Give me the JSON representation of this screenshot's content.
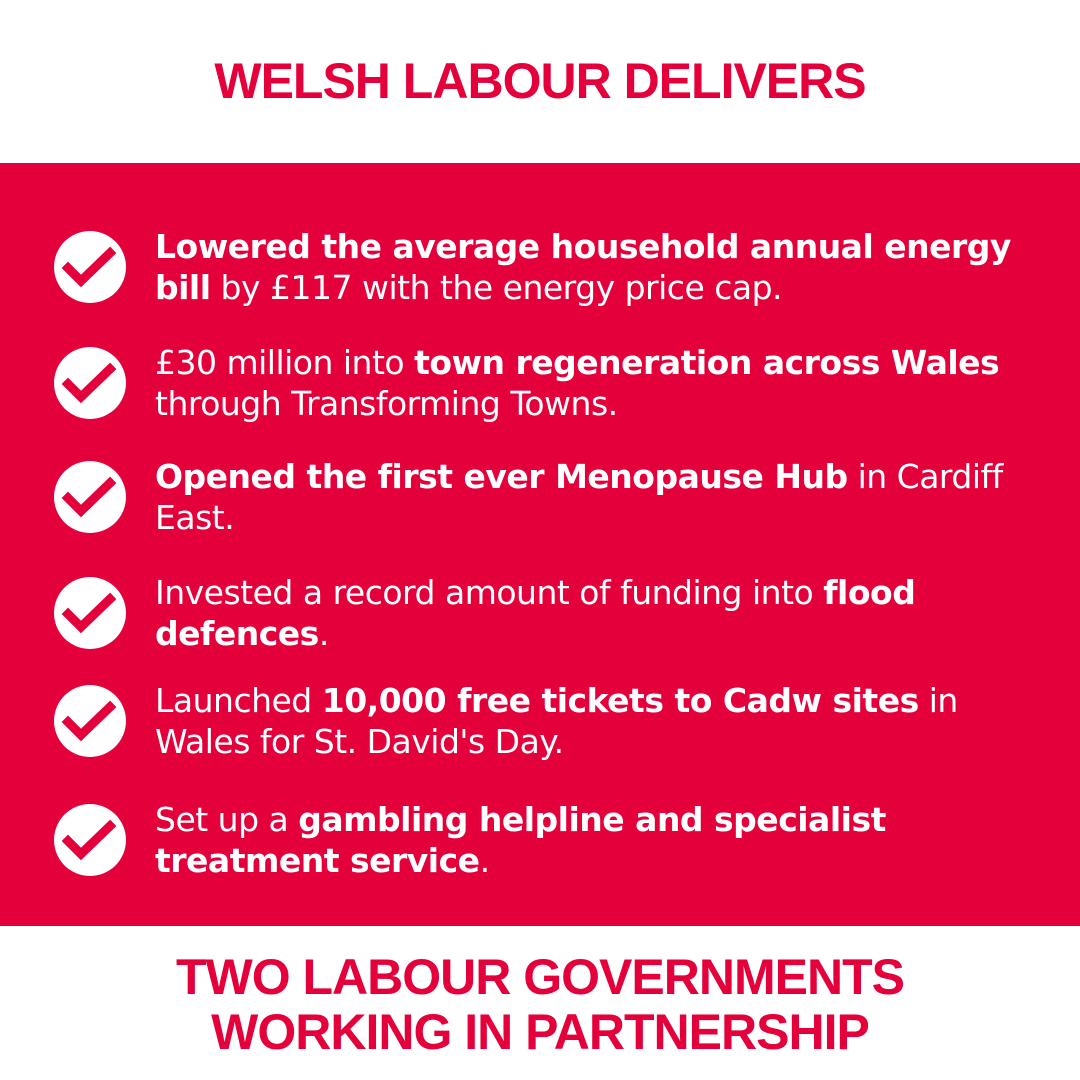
{
  "header": {
    "title": "WELSH LABOUR DELIVERS"
  },
  "colors": {
    "accent": "#E4003B",
    "background": "#FFFFFF",
    "text_on_accent": "#FFFFFF"
  },
  "items": [
    {
      "icon": "check-circle-icon",
      "segments": [
        {
          "text": "Lowered the average household annual energy bill",
          "bold": true
        },
        {
          "text": " by £117 with the energy price cap.",
          "bold": false
        }
      ]
    },
    {
      "icon": "check-circle-icon",
      "segments": [
        {
          "text": "£30 million into ",
          "bold": false
        },
        {
          "text": "town regeneration across Wales",
          "bold": true
        },
        {
          "text": " through Transforming Towns.",
          "bold": false
        }
      ]
    },
    {
      "icon": "check-circle-icon",
      "segments": [
        {
          "text": "Opened the first ever Menopause Hub",
          "bold": true
        },
        {
          "text": " in Cardiff East.",
          "bold": false
        }
      ]
    },
    {
      "icon": "check-circle-icon",
      "segments": [
        {
          "text": "Invested a record amount of funding into ",
          "bold": false
        },
        {
          "text": "flood defences",
          "bold": true
        },
        {
          "text": ".",
          "bold": false
        }
      ]
    },
    {
      "icon": "check-circle-icon",
      "segments": [
        {
          "text": "Launched ",
          "bold": false
        },
        {
          "text": "10,000 free tickets to Cadw sites",
          "bold": true
        },
        {
          "text": " in Wales for St. David's Day.",
          "bold": false
        }
      ]
    },
    {
      "icon": "check-circle-icon",
      "segments": [
        {
          "text": "Set up a ",
          "bold": false
        },
        {
          "text": "gambling helpline and specialist treatment service",
          "bold": true
        },
        {
          "text": ".",
          "bold": false
        }
      ]
    }
  ],
  "footer": {
    "line1": "TWO LABOUR GOVERNMENTS",
    "line2": "WORKING IN PARTNERSHIP"
  }
}
